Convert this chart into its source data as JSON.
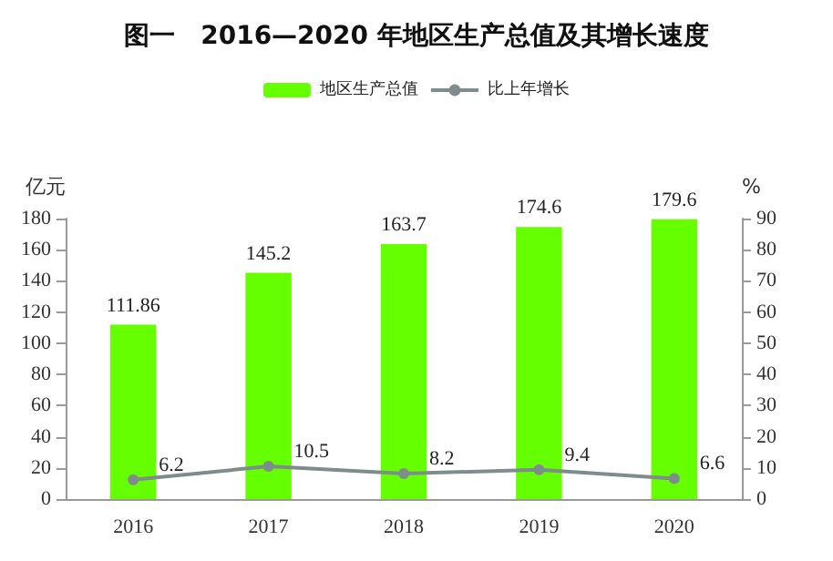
{
  "chart_data": {
    "type": "bar",
    "title": "图一　2016—2020 年地区生产总值及其增长速度",
    "categories": [
      "2016",
      "2017",
      "2018",
      "2019",
      "2020"
    ],
    "series": [
      {
        "name": "地区生产总值",
        "color": "#66ff00",
        "values": [
          111.86,
          145.2,
          163.7,
          174.6,
          179.6
        ]
      },
      {
        "name": "比上年增长",
        "type": "line",
        "axis": "y2",
        "color": "#7f8c8d",
        "values": [
          6.2,
          10.5,
          8.2,
          9.4,
          6.6
        ]
      }
    ],
    "ylabel": "亿元",
    "y2label": "%",
    "ylim": [
      0,
      180
    ],
    "yticks": [
      0,
      20,
      40,
      60,
      80,
      100,
      120,
      140,
      160,
      180
    ],
    "y2lim": [
      0,
      90
    ],
    "y2ticks": [
      0,
      10,
      20,
      30,
      40,
      50,
      60,
      70,
      80,
      90
    ],
    "data_labels": true,
    "legend": "top",
    "grid": false,
    "marker": "circle",
    "line_style": "solid"
  }
}
